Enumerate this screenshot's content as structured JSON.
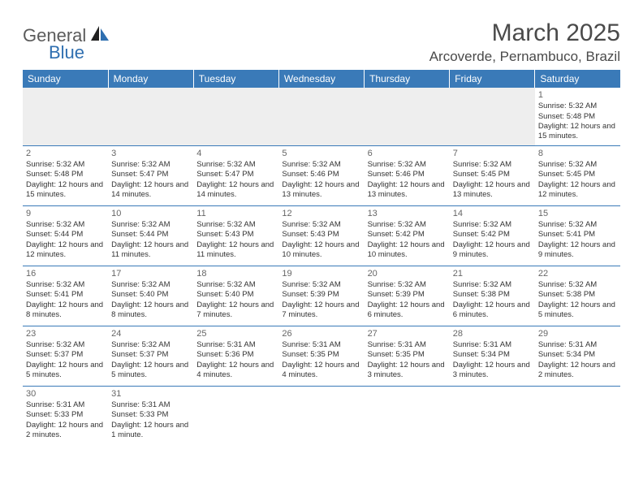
{
  "logo": {
    "text1": "General",
    "text2": "Blue"
  },
  "title": "March 2025",
  "location": "Arcoverde, Pernambuco, Brazil",
  "colors": {
    "header_bg": "#3a7ab8",
    "header_fg": "#ffffff",
    "row_border": "#3a7ab8",
    "blank_bg": "#eeeeee",
    "text": "#333333",
    "title_color": "#4a4a4a",
    "logo_dark": "#5b5b5b",
    "logo_blue": "#2f6fb0"
  },
  "daysOfWeek": [
    "Sunday",
    "Monday",
    "Tuesday",
    "Wednesday",
    "Thursday",
    "Friday",
    "Saturday"
  ],
  "weeks": [
    [
      null,
      null,
      null,
      null,
      null,
      null,
      {
        "n": "1",
        "sr": "5:32 AM",
        "ss": "5:48 PM",
        "dl": "12 hours and 15 minutes."
      }
    ],
    [
      {
        "n": "2",
        "sr": "5:32 AM",
        "ss": "5:48 PM",
        "dl": "12 hours and 15 minutes."
      },
      {
        "n": "3",
        "sr": "5:32 AM",
        "ss": "5:47 PM",
        "dl": "12 hours and 14 minutes."
      },
      {
        "n": "4",
        "sr": "5:32 AM",
        "ss": "5:47 PM",
        "dl": "12 hours and 14 minutes."
      },
      {
        "n": "5",
        "sr": "5:32 AM",
        "ss": "5:46 PM",
        "dl": "12 hours and 13 minutes."
      },
      {
        "n": "6",
        "sr": "5:32 AM",
        "ss": "5:46 PM",
        "dl": "12 hours and 13 minutes."
      },
      {
        "n": "7",
        "sr": "5:32 AM",
        "ss": "5:45 PM",
        "dl": "12 hours and 13 minutes."
      },
      {
        "n": "8",
        "sr": "5:32 AM",
        "ss": "5:45 PM",
        "dl": "12 hours and 12 minutes."
      }
    ],
    [
      {
        "n": "9",
        "sr": "5:32 AM",
        "ss": "5:44 PM",
        "dl": "12 hours and 12 minutes."
      },
      {
        "n": "10",
        "sr": "5:32 AM",
        "ss": "5:44 PM",
        "dl": "12 hours and 11 minutes."
      },
      {
        "n": "11",
        "sr": "5:32 AM",
        "ss": "5:43 PM",
        "dl": "12 hours and 11 minutes."
      },
      {
        "n": "12",
        "sr": "5:32 AM",
        "ss": "5:43 PM",
        "dl": "12 hours and 10 minutes."
      },
      {
        "n": "13",
        "sr": "5:32 AM",
        "ss": "5:42 PM",
        "dl": "12 hours and 10 minutes."
      },
      {
        "n": "14",
        "sr": "5:32 AM",
        "ss": "5:42 PM",
        "dl": "12 hours and 9 minutes."
      },
      {
        "n": "15",
        "sr": "5:32 AM",
        "ss": "5:41 PM",
        "dl": "12 hours and 9 minutes."
      }
    ],
    [
      {
        "n": "16",
        "sr": "5:32 AM",
        "ss": "5:41 PM",
        "dl": "12 hours and 8 minutes."
      },
      {
        "n": "17",
        "sr": "5:32 AM",
        "ss": "5:40 PM",
        "dl": "12 hours and 8 minutes."
      },
      {
        "n": "18",
        "sr": "5:32 AM",
        "ss": "5:40 PM",
        "dl": "12 hours and 7 minutes."
      },
      {
        "n": "19",
        "sr": "5:32 AM",
        "ss": "5:39 PM",
        "dl": "12 hours and 7 minutes."
      },
      {
        "n": "20",
        "sr": "5:32 AM",
        "ss": "5:39 PM",
        "dl": "12 hours and 6 minutes."
      },
      {
        "n": "21",
        "sr": "5:32 AM",
        "ss": "5:38 PM",
        "dl": "12 hours and 6 minutes."
      },
      {
        "n": "22",
        "sr": "5:32 AM",
        "ss": "5:38 PM",
        "dl": "12 hours and 5 minutes."
      }
    ],
    [
      {
        "n": "23",
        "sr": "5:32 AM",
        "ss": "5:37 PM",
        "dl": "12 hours and 5 minutes."
      },
      {
        "n": "24",
        "sr": "5:32 AM",
        "ss": "5:37 PM",
        "dl": "12 hours and 5 minutes."
      },
      {
        "n": "25",
        "sr": "5:31 AM",
        "ss": "5:36 PM",
        "dl": "12 hours and 4 minutes."
      },
      {
        "n": "26",
        "sr": "5:31 AM",
        "ss": "5:35 PM",
        "dl": "12 hours and 4 minutes."
      },
      {
        "n": "27",
        "sr": "5:31 AM",
        "ss": "5:35 PM",
        "dl": "12 hours and 3 minutes."
      },
      {
        "n": "28",
        "sr": "5:31 AM",
        "ss": "5:34 PM",
        "dl": "12 hours and 3 minutes."
      },
      {
        "n": "29",
        "sr": "5:31 AM",
        "ss": "5:34 PM",
        "dl": "12 hours and 2 minutes."
      }
    ],
    [
      {
        "n": "30",
        "sr": "5:31 AM",
        "ss": "5:33 PM",
        "dl": "12 hours and 2 minutes."
      },
      {
        "n": "31",
        "sr": "5:31 AM",
        "ss": "5:33 PM",
        "dl": "12 hours and 1 minute."
      },
      null,
      null,
      null,
      null,
      null
    ]
  ],
  "labels": {
    "sunrise": "Sunrise:",
    "sunset": "Sunset:",
    "daylight": "Daylight:"
  }
}
